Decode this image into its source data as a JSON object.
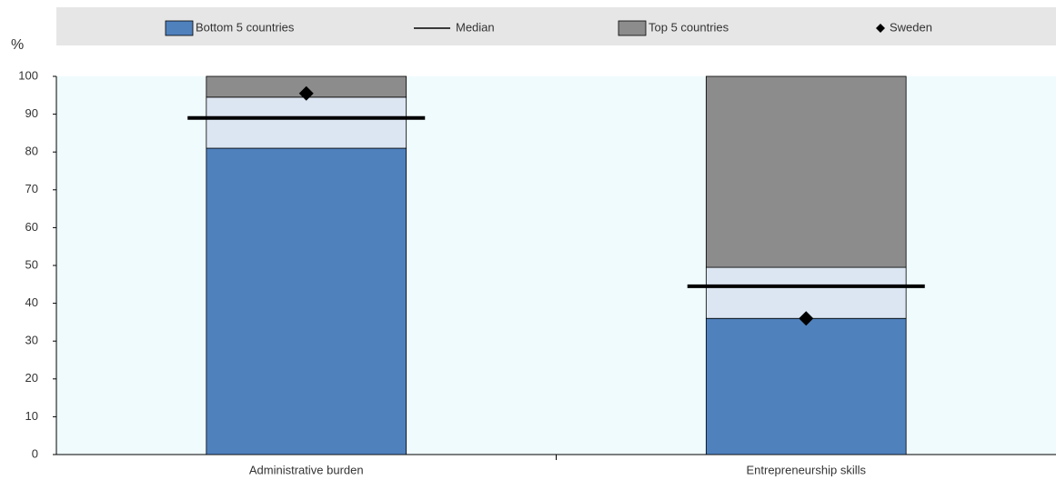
{
  "chart_data": {
    "type": "floating-bar",
    "ylabel": "%",
    "categories": [
      "Administrative burden",
      "Entrepreneurship skills"
    ],
    "series": [
      {
        "name": "Bottom 5 countries",
        "color": "#4f81bd",
        "values": [
          81,
          36
        ]
      },
      {
        "color": "#dce6f2",
        "values": [
          13.5,
          13.5
        ]
      },
      {
        "name": "Top 5 countries",
        "color": "#8c8c8c",
        "values": [
          5.5,
          50.5
        ]
      }
    ],
    "median": {
      "name": "Median",
      "color": "#000000",
      "values": [
        89,
        44.5
      ]
    },
    "sweden": {
      "name": "Sweden",
      "color": "#000000",
      "values": [
        95.5,
        36
      ]
    },
    "ylim": [
      0,
      100
    ],
    "yticks": [
      0,
      10,
      20,
      30,
      40,
      50,
      60,
      70,
      80,
      90,
      100
    ],
    "grid": false
  }
}
